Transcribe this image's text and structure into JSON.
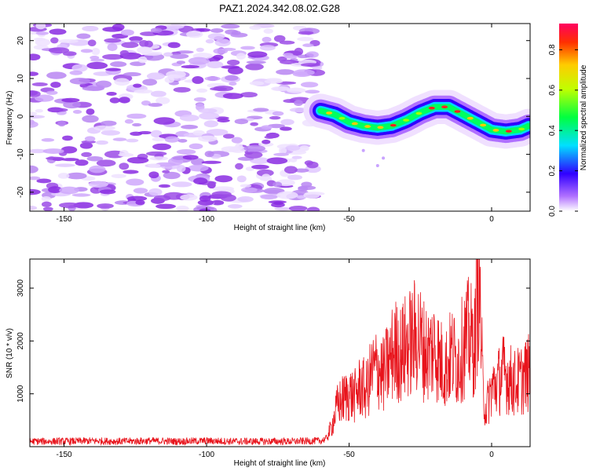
{
  "title": "PAZ1.2024.342.08.02.G28",
  "chart_data": [
    {
      "type": "heatmap",
      "xlabel": "Height of straight line (km)",
      "ylabel": "Frequency (Hz)",
      "xlim": [
        -162,
        13.5
      ],
      "ylim": [
        -25,
        24.5
      ],
      "xticks": [
        -150,
        -100,
        -50,
        0
      ],
      "yticks": [
        -20,
        -10,
        0,
        10,
        20
      ],
      "noise_region": {
        "x_range": [
          -162,
          -61
        ],
        "typical_amplitude": 0.1
      },
      "signal_track": {
        "x": [
          -60,
          -55,
          -50,
          -45,
          -40,
          -35,
          -30,
          -25,
          -20,
          -15,
          -10,
          -5,
          0,
          5,
          10,
          13
        ],
        "frequency": [
          1.5,
          0.5,
          -1.5,
          -2.5,
          -3.0,
          -2.5,
          -1.0,
          1.0,
          2.5,
          2.5,
          0.5,
          -1.5,
          -3.5,
          -4.0,
          -3.5,
          -2.5
        ]
      },
      "colorbar": {
        "label": "Normalized spectral amplitude",
        "range": [
          0,
          0.93
        ],
        "ticks": [
          0.0,
          0.2,
          0.4,
          0.6,
          0.8
        ]
      }
    },
    {
      "type": "line",
      "xlabel": "Height of straight line (km)",
      "ylabel": "SNR (10 * v/v)",
      "xlim": [
        -162,
        13.5
      ],
      "ylim": [
        0,
        3550
      ],
      "xticks": [
        -150,
        -100,
        -50,
        0
      ],
      "yticks": [
        1000,
        2000,
        3000
      ],
      "series": [
        {
          "color": "#e8141c",
          "x": [
            -162,
            -150,
            -140,
            -130,
            -120,
            -110,
            -100,
            -90,
            -80,
            -70,
            -60,
            -58,
            -56,
            -54,
            -52,
            -50,
            -48,
            -46,
            -44,
            -42,
            -40,
            -38,
            -36,
            -34,
            -32,
            -30,
            -28,
            -26,
            -24,
            -22,
            -20,
            -18,
            -16,
            -14,
            -12,
            -10,
            -8,
            -6,
            -4.5,
            -3,
            -2,
            0,
            2,
            4,
            6,
            8,
            10,
            12,
            13.5
          ],
          "y": [
            100,
            100,
            110,
            100,
            110,
            100,
            110,
            100,
            100,
            100,
            110,
            150,
            400,
            800,
            900,
            1000,
            950,
            1150,
            1050,
            1400,
            1500,
            1350,
            1600,
            1850,
            1750,
            1900,
            2000,
            2150,
            1850,
            1750,
            1900,
            1600,
            1500,
            1750,
            1600,
            1900,
            2100,
            1900,
            3450,
            1000,
            700,
            1100,
            1200,
            1400,
            1300,
            1200,
            1250,
            1350,
            1400
          ]
        }
      ]
    }
  ],
  "colors": {
    "noise": "#9b4be6",
    "signal_line": "#e8141c"
  }
}
